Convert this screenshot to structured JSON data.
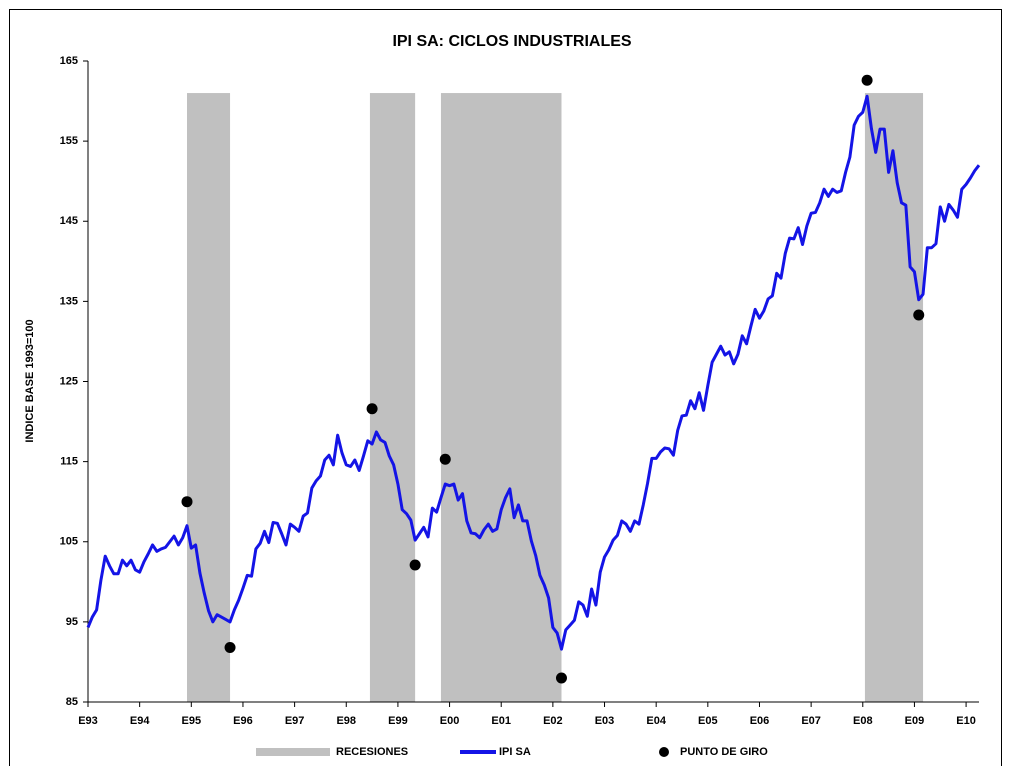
{
  "chart_data": {
    "type": "line",
    "title": "IPI SA: CICLOS INDUSTRIALES",
    "y_label": "INDICE BASE 1993=100",
    "ylim": [
      85,
      165
    ],
    "yticks": [
      85,
      95,
      105,
      115,
      125,
      135,
      145,
      155,
      165
    ],
    "categories": [
      "E93",
      null,
      null,
      null,
      null,
      null,
      null,
      null,
      null,
      null,
      null,
      null,
      "E94",
      null,
      null,
      null,
      null,
      null,
      null,
      null,
      null,
      null,
      null,
      null,
      "E95",
      null,
      null,
      null,
      null,
      null,
      null,
      null,
      null,
      null,
      null,
      null,
      "E96",
      null,
      null,
      null,
      null,
      null,
      null,
      null,
      null,
      null,
      null,
      null,
      "E97",
      null,
      null,
      null,
      null,
      null,
      null,
      null,
      null,
      null,
      null,
      null,
      "E98",
      null,
      null,
      null,
      null,
      null,
      null,
      null,
      null,
      null,
      null,
      null,
      "E99",
      null,
      null,
      null,
      null,
      null,
      null,
      null,
      null,
      null,
      null,
      null,
      "E00",
      null,
      null,
      null,
      null,
      null,
      null,
      null,
      null,
      null,
      null,
      null,
      "E01",
      null,
      null,
      null,
      null,
      null,
      null,
      null,
      null,
      null,
      null,
      null,
      "E02",
      null,
      null,
      null,
      null,
      null,
      null,
      null,
      null,
      null,
      null,
      null,
      "E03",
      null,
      null,
      null,
      null,
      null,
      null,
      null,
      null,
      null,
      null,
      null,
      "E04",
      null,
      null,
      null,
      null,
      null,
      null,
      null,
      null,
      null,
      null,
      null,
      "E05",
      null,
      null,
      null,
      null,
      null,
      null,
      null,
      null,
      null,
      null,
      null,
      "E06",
      null,
      null,
      null,
      null,
      null,
      null,
      null,
      null,
      null,
      null,
      null,
      "E07",
      null,
      null,
      null,
      null,
      null,
      null,
      null,
      null,
      null,
      null,
      null,
      "E08",
      null,
      null,
      null,
      null,
      null,
      null,
      null,
      null,
      null,
      null,
      null,
      "E09",
      null,
      null,
      null,
      null,
      null,
      null,
      null,
      null,
      null,
      null,
      null,
      "E10",
      null,
      null,
      null
    ],
    "series": [
      {
        "name": "IPI SA",
        "color": "#1414e6",
        "values": [
          94.3,
          95.6,
          96.5,
          100.2,
          103.2,
          102,
          101,
          101,
          102.7,
          102,
          102.7,
          101.5,
          101.2,
          102.5,
          103.5,
          104.6,
          103.8,
          104.1,
          104.3,
          105,
          105.7,
          104.6,
          105.5,
          107,
          104.2,
          104.6,
          101.1,
          98.6,
          96.4,
          95,
          95.9,
          95.6,
          95.3,
          95,
          96.5,
          97.7,
          99.2,
          100.8,
          100.7,
          104.1,
          104.8,
          106.3,
          104.9,
          107.4,
          107.3,
          106,
          104.6,
          107.2,
          106.8,
          106.3,
          108.2,
          108.6,
          111.7,
          112.6,
          113.2,
          115.2,
          115.8,
          114.6,
          118.3,
          116.1,
          114.6,
          114.4,
          115.2,
          113.9,
          115.7,
          117.6,
          117.2,
          118.7,
          117.7,
          117.4,
          115.7,
          114.6,
          112.2,
          109,
          108.5,
          107.7,
          105.2,
          106,
          106.8,
          105.6,
          109.2,
          108.7,
          110.5,
          112.2,
          112,
          112.2,
          110.2,
          111,
          107.6,
          106.1,
          106,
          105.5,
          106.5,
          107.2,
          106.3,
          106.6,
          109,
          110.5,
          111.6,
          108,
          109.6,
          107.6,
          107.6,
          105.1,
          103.3,
          100.8,
          99.6,
          98,
          94.3,
          93.6,
          91.6,
          94,
          94.6,
          95.2,
          97.5,
          97.1,
          95.7,
          99.1,
          97.1,
          101.2,
          103.1,
          104,
          105.2,
          105.8,
          107.6,
          107.2,
          106.3,
          107.6,
          107.2,
          109.6,
          112.3,
          115.4,
          115.4,
          116.2,
          116.7,
          116.6,
          115.8,
          118.9,
          120.7,
          120.8,
          122.6,
          121.6,
          123.6,
          121.4,
          124.5,
          127.4,
          128.4,
          129.4,
          128.3,
          128.7,
          127.2,
          128.4,
          130.7,
          129.7,
          131.9,
          134,
          132.9,
          133.8,
          135.3,
          135.7,
          138.5,
          137.9,
          141,
          142.9,
          142.8,
          144.2,
          142.1,
          144.4,
          146,
          146.1,
          147.3,
          149,
          148.1,
          149,
          148.6,
          148.8,
          151.1,
          153,
          157,
          158.1,
          158.6,
          160.6,
          156.6,
          153.6,
          156.5,
          156.5,
          151.1,
          153.8,
          149.8,
          147.3,
          147,
          139.3,
          138.7,
          135.2,
          135.9,
          141.7,
          141.7,
          142.2,
          146.8,
          145,
          147.1,
          146.4,
          145.5,
          149,
          149.6,
          150.4,
          151.3,
          152
        ]
      }
    ],
    "recessions": {
      "name": "RECESIONES",
      "color": "#c0c0c0",
      "top": 161,
      "spans": [
        [
          23,
          33
        ],
        [
          65.5,
          76
        ],
        [
          82,
          110
        ],
        [
          180.5,
          194
        ]
      ]
    },
    "turning_points": {
      "name": "PUNTO DE GIRO",
      "color": "#000000",
      "x": [
        23,
        33,
        66,
        76,
        83,
        110,
        181,
        193
      ],
      "values": [
        110,
        91.8,
        121.6,
        102.1,
        115.3,
        88,
        162.6,
        133.3
      ]
    }
  }
}
